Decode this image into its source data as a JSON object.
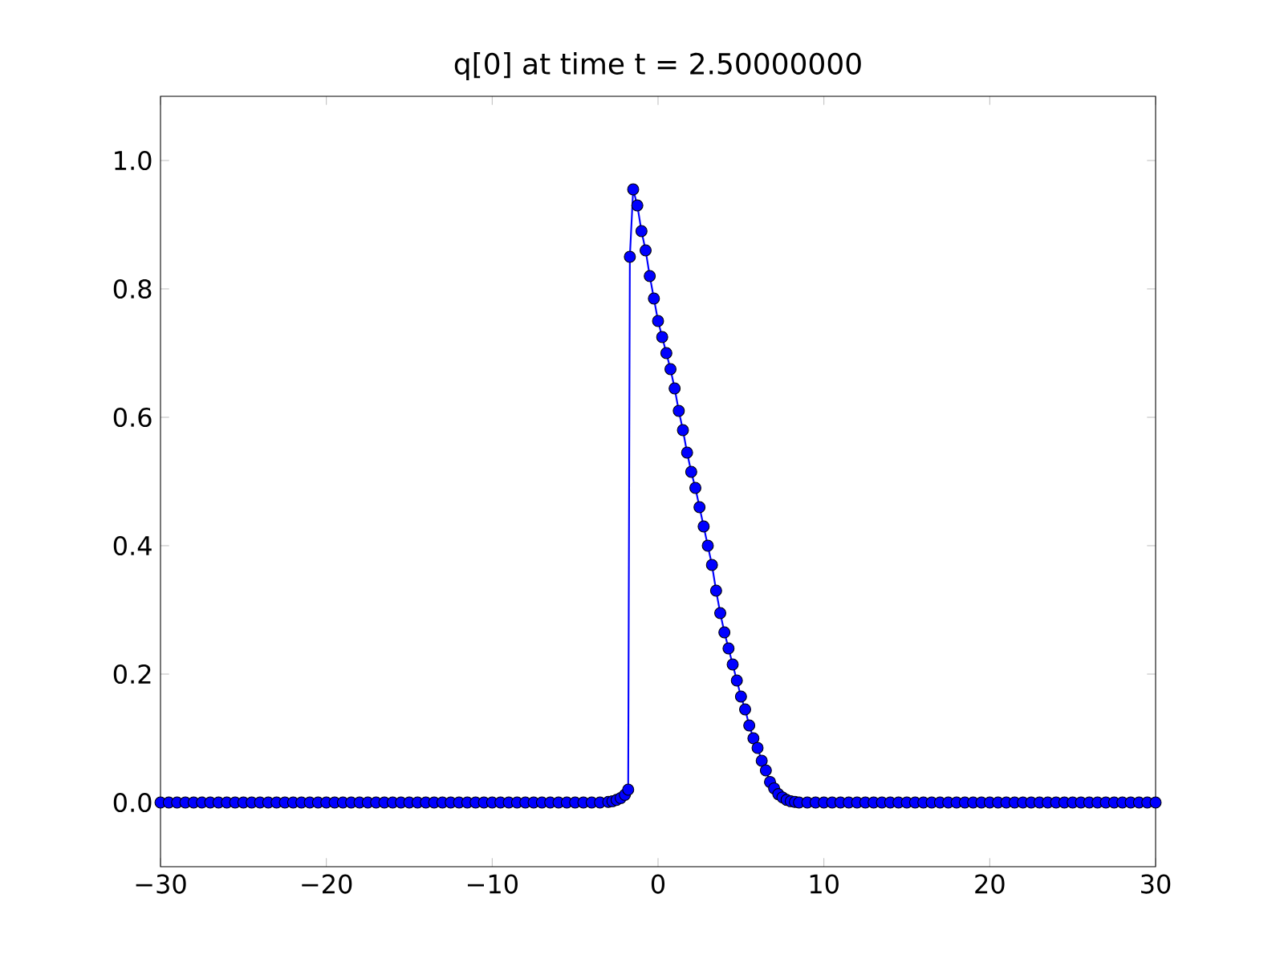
{
  "chart_data": {
    "type": "line",
    "title": "q[0] at time t =     2.50000000",
    "xlim": [
      -30,
      30
    ],
    "ylim": [
      -0.1,
      1.1
    ],
    "xticks": [
      {
        "value": -30,
        "label": "−30"
      },
      {
        "value": -20,
        "label": "−20"
      },
      {
        "value": -10,
        "label": "−10"
      },
      0,
      10,
      20,
      30
    ],
    "yticks": [
      {
        "value": 0,
        "label": "0.0"
      },
      {
        "value": 0.2,
        "label": "0.2"
      },
      {
        "value": 0.4,
        "label": "0.4"
      },
      {
        "value": 0.6,
        "label": "0.6"
      },
      {
        "value": 0.8,
        "label": "0.8"
      },
      {
        "value": 1.0,
        "label": "1.0"
      }
    ],
    "grid": false,
    "marker": "circle",
    "line_style": "solid",
    "series": [
      {
        "color": "#0000ff",
        "x": [
          -30,
          -29.5,
          -29,
          -28.5,
          -28,
          -27.5,
          -27,
          -26.5,
          -26,
          -25.5,
          -25,
          -24.5,
          -24,
          -23.5,
          -23,
          -22.5,
          -22,
          -21.5,
          -21,
          -20.5,
          -20,
          -19.5,
          -19,
          -18.5,
          -18,
          -17.5,
          -17,
          -16.5,
          -16,
          -15.5,
          -15,
          -14.5,
          -14,
          -13.5,
          -13,
          -12.5,
          -12,
          -11.5,
          -11,
          -10.5,
          -10,
          -9.5,
          -9,
          -8.5,
          -8,
          -7.5,
          -7,
          -6.5,
          -6,
          -5.5,
          -5,
          -4.5,
          -4,
          -3.5,
          -3,
          -2.75,
          -2.5,
          -2.25,
          -2,
          -1.8,
          -1.7,
          -1.5,
          -1.25,
          -1,
          -0.75,
          -0.5,
          -0.25,
          0,
          0.25,
          0.5,
          0.75,
          1,
          1.25,
          1.5,
          1.75,
          2,
          2.25,
          2.5,
          2.75,
          3,
          3.25,
          3.5,
          3.75,
          4,
          4.25,
          4.5,
          4.75,
          5,
          5.25,
          5.5,
          5.75,
          6,
          6.25,
          6.5,
          6.75,
          7,
          7.25,
          7.5,
          7.75,
          8,
          8.25,
          8.5,
          9,
          9.5,
          10,
          10.5,
          11,
          11.5,
          12,
          12.5,
          13,
          13.5,
          14,
          14.5,
          15,
          15.5,
          16,
          16.5,
          17,
          17.5,
          18,
          18.5,
          19,
          19.5,
          20,
          20.5,
          21,
          21.5,
          22,
          22.5,
          23,
          23.5,
          24,
          24.5,
          25,
          25.5,
          26,
          26.5,
          27,
          27.5,
          28,
          28.5,
          29,
          29.5,
          30
        ],
        "values": [
          0,
          0,
          0,
          0,
          0,
          0,
          0,
          0,
          0,
          0,
          0,
          0,
          0,
          0,
          0,
          0,
          0,
          0,
          0,
          0,
          0,
          0,
          0,
          0,
          0,
          0,
          0,
          0,
          0,
          0,
          0,
          0,
          0,
          0,
          0,
          0,
          0,
          0,
          0,
          0,
          0,
          0,
          0,
          0,
          0,
          0,
          0,
          0,
          0,
          0,
          0,
          0,
          0,
          0,
          0.001,
          0.002,
          0.004,
          0.007,
          0.012,
          0.02,
          0.85,
          0.955,
          0.93,
          0.89,
          0.86,
          0.82,
          0.785,
          0.75,
          0.725,
          0.7,
          0.675,
          0.645,
          0.61,
          0.58,
          0.545,
          0.515,
          0.49,
          0.46,
          0.43,
          0.4,
          0.37,
          0.33,
          0.295,
          0.265,
          0.24,
          0.215,
          0.19,
          0.165,
          0.145,
          0.12,
          0.1,
          0.085,
          0.065,
          0.05,
          0.032,
          0.022,
          0.013,
          0.008,
          0.004,
          0.002,
          0.001,
          0,
          0,
          0,
          0,
          0,
          0,
          0,
          0,
          0,
          0,
          0,
          0,
          0,
          0,
          0,
          0,
          0,
          0,
          0,
          0,
          0,
          0,
          0,
          0,
          0,
          0,
          0,
          0,
          0,
          0,
          0,
          0,
          0,
          0,
          0,
          0,
          0,
          0,
          0,
          0,
          0,
          0,
          0,
          0
        ]
      }
    ]
  }
}
